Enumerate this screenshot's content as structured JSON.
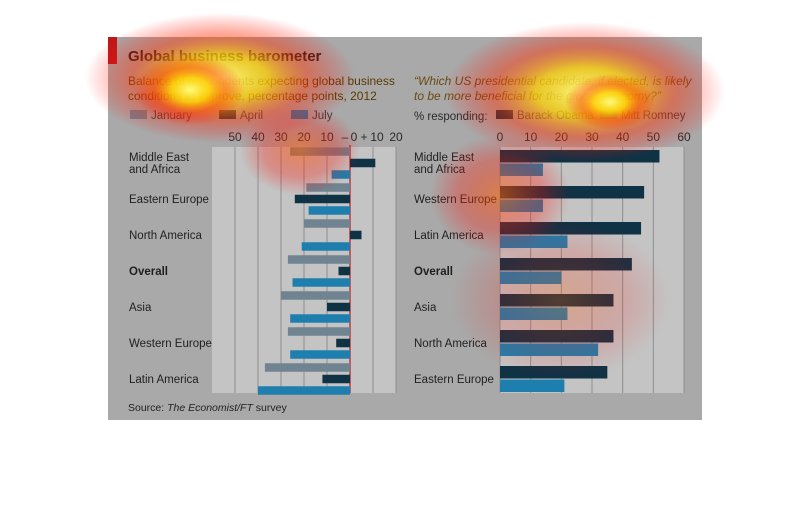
{
  "header": {
    "title": "Global business barometer",
    "source_prefix": "Source: ",
    "source_italic": "The Economist/FT",
    "source_suffix": " survey"
  },
  "chart_data": [
    {
      "type": "bar",
      "orientation": "horizontal",
      "title": "Balance of respondents expecting global business conditions to improve, percentage points, 2012",
      "title_lines": [
        "Balance of respondents expecting global business",
        "conditions to improve, percentage points, 2012"
      ],
      "xlim": [
        -60,
        20
      ],
      "x_ticks": [
        {
          "v": -50,
          "label": "50"
        },
        {
          "v": -40,
          "label": "40"
        },
        {
          "v": -30,
          "label": "30"
        },
        {
          "v": -20,
          "label": "20"
        },
        {
          "v": -10,
          "label": "10"
        },
        {
          "v": 0,
          "label": "–"
        },
        {
          "v": 0.001,
          "label": "0"
        },
        {
          "v": 5,
          "label": "+"
        },
        {
          "v": 10,
          "label": "10"
        },
        {
          "v": 20,
          "label": "20"
        }
      ],
      "categories": [
        "Middle East and Africa",
        "Eastern Europe",
        "North America",
        "Overall",
        "Asia",
        "Western Europe",
        "Latin America"
      ],
      "category_lines": [
        [
          "Middle East",
          "and Africa"
        ],
        [
          "Eastern Europe"
        ],
        [
          "North America"
        ],
        [
          "Overall"
        ],
        [
          "Asia"
        ],
        [
          "Western Europe"
        ],
        [
          "Latin America"
        ]
      ],
      "bold_category": "Overall",
      "series": [
        {
          "name": "January",
          "color": "#6f8390",
          "values": [
            -26,
            -19,
            -20,
            -27,
            -30,
            -27,
            -37
          ]
        },
        {
          "name": "April",
          "color": "#0f3245",
          "values": [
            11,
            -24,
            5,
            -5,
            -10,
            -6,
            -12
          ]
        },
        {
          "name": "July",
          "color": "#1e7fae",
          "values": [
            -8,
            -18,
            -21,
            -25,
            -26,
            -26,
            -40
          ]
        }
      ]
    },
    {
      "type": "bar",
      "orientation": "horizontal",
      "title": "“Which US presidential candidate, if elected, is likely to be more beneficial for the global economy?”",
      "title_lines": [
        "“Which US presidential candidate, if elected, is likely",
        "to be more beneficial for the global economy?”"
      ],
      "legend_prefix": "% responding:",
      "xlim": [
        0,
        60
      ],
      "x_ticks": [
        {
          "v": 0,
          "label": "0"
        },
        {
          "v": 10,
          "label": "10"
        },
        {
          "v": 20,
          "label": "20"
        },
        {
          "v": 30,
          "label": "30"
        },
        {
          "v": 40,
          "label": "40"
        },
        {
          "v": 50,
          "label": "50"
        },
        {
          "v": 60,
          "label": "60"
        }
      ],
      "categories": [
        "Middle East and Africa",
        "Western Europe",
        "Latin America",
        "Overall",
        "Asia",
        "North America",
        "Eastern Europe"
      ],
      "category_lines": [
        [
          "Middle East",
          "and Africa"
        ],
        [
          "Western Europe"
        ],
        [
          "Latin America"
        ],
        [
          "Overall"
        ],
        [
          "Asia"
        ],
        [
          "North America"
        ],
        [
          "Eastern Europe"
        ]
      ],
      "bold_category": "Overall",
      "series": [
        {
          "name": "Barack Obama",
          "color": "#0f3245",
          "values": [
            52,
            47,
            46,
            43,
            37,
            37,
            35
          ]
        },
        {
          "name": "Mitt Romney",
          "color": "#1e7fae",
          "values": [
            14,
            14,
            22,
            20,
            22,
            32,
            21
          ]
        }
      ]
    }
  ]
}
